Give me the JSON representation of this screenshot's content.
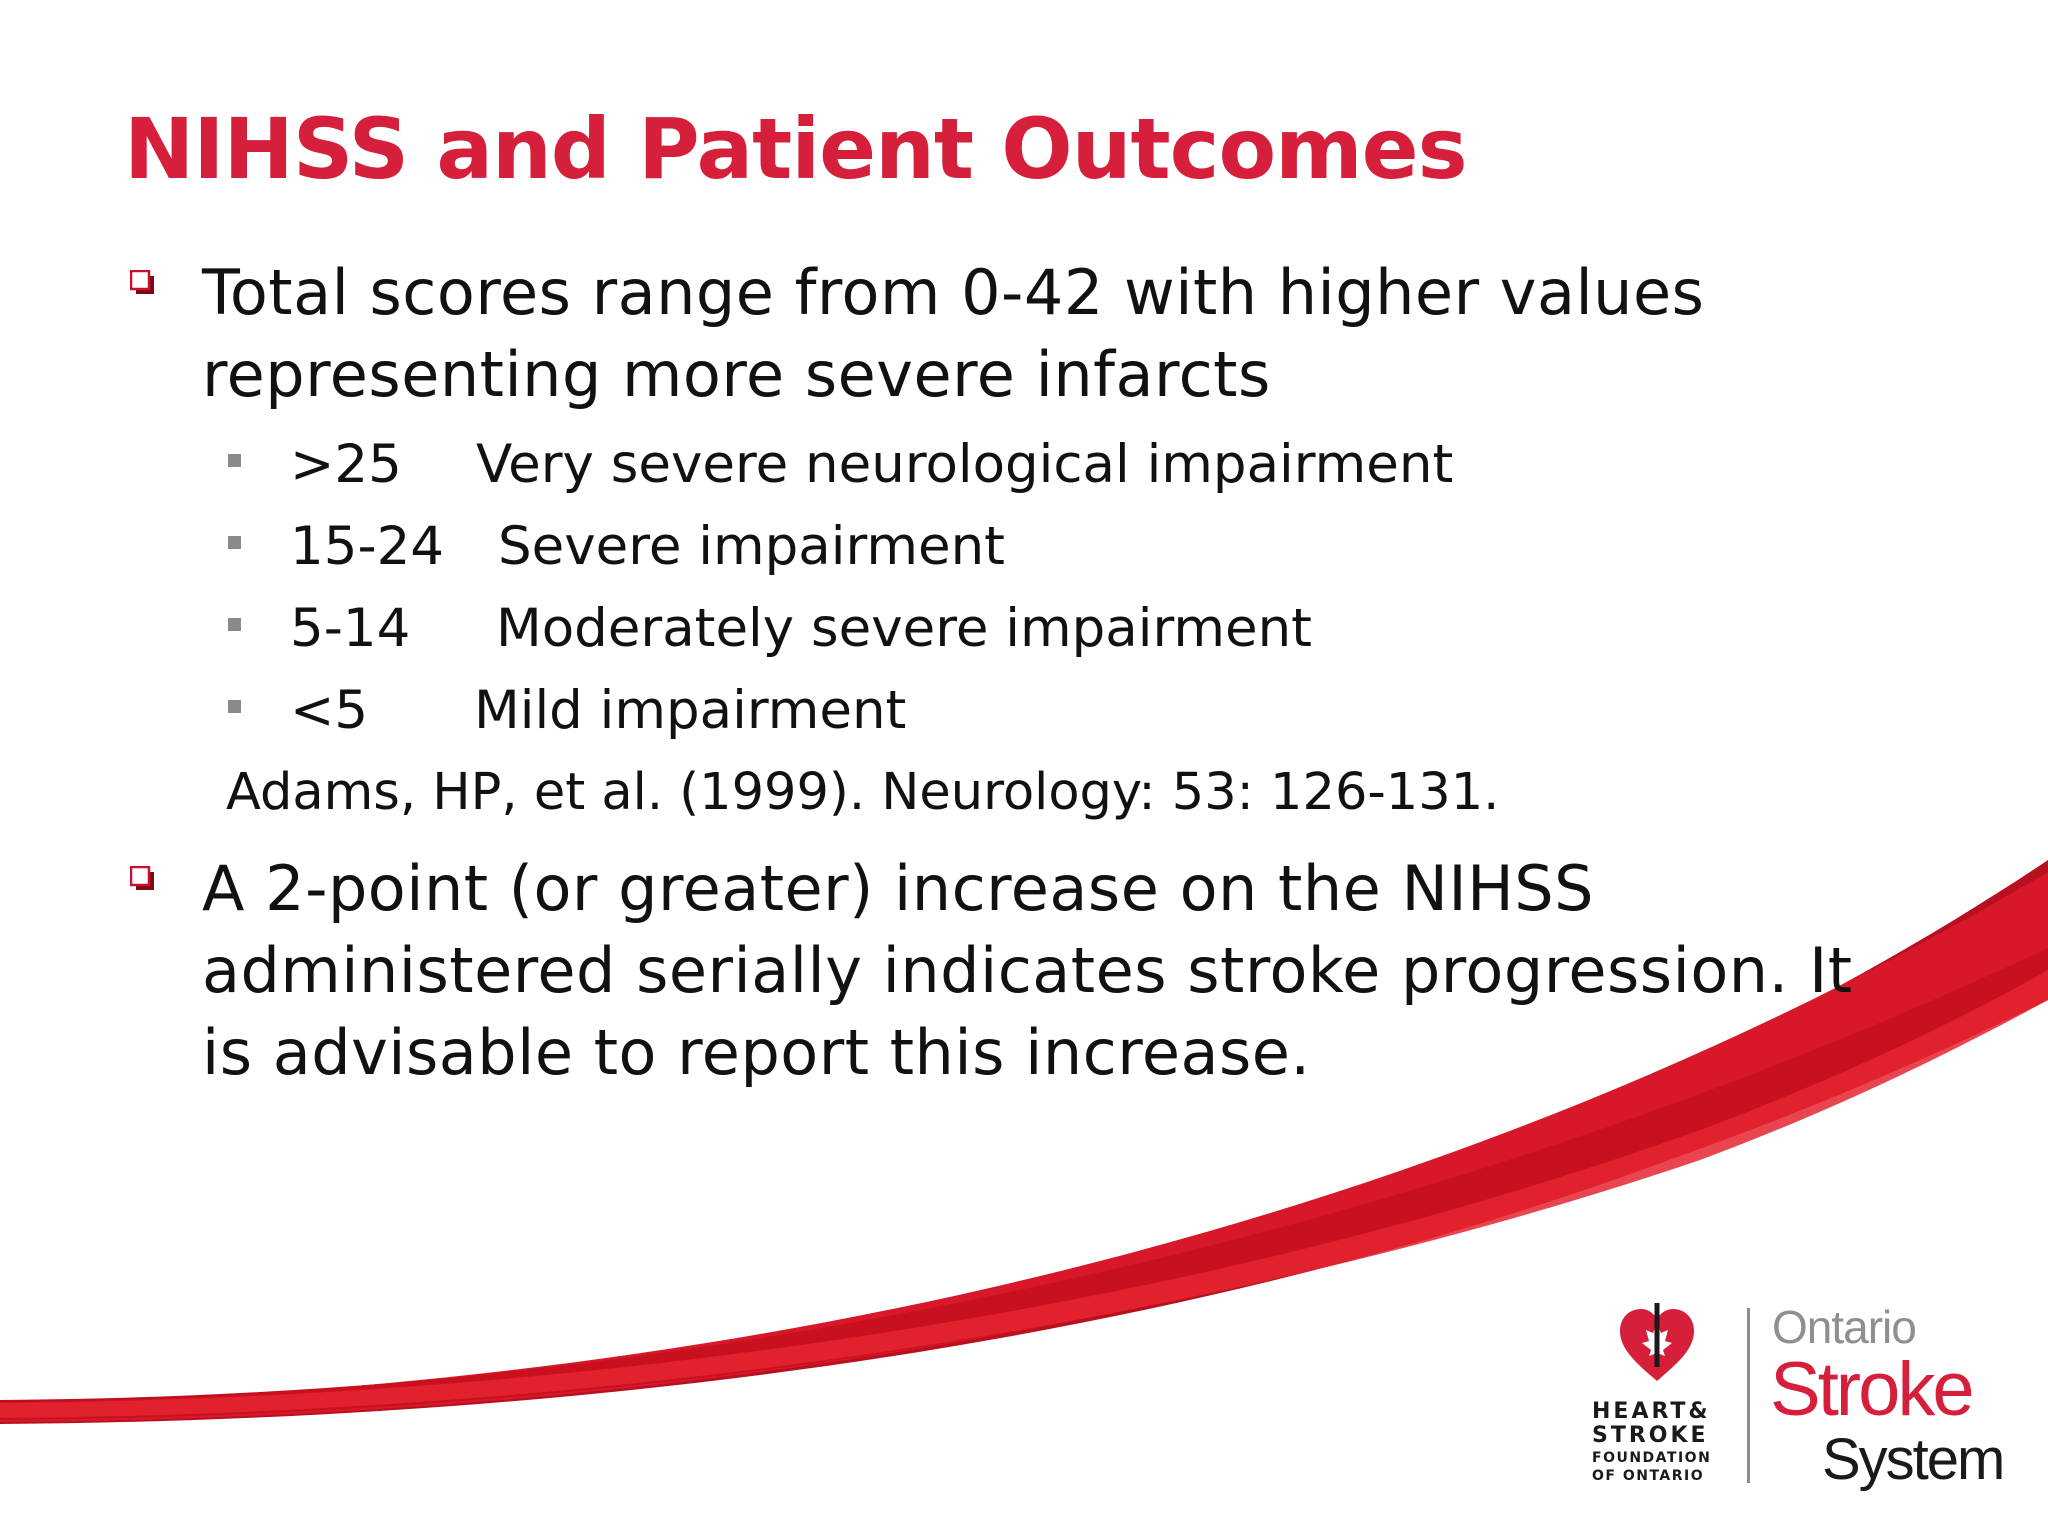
{
  "slide": {
    "title": "NIHSS and Patient Outcomes",
    "bullets": [
      {
        "lines": [
          "Total scores range from 0-42 with higher values",
          "representing more severe infarcts"
        ]
      },
      {
        "lines": [
          "A 2-point (or greater) increase on the NIHSS",
          "administered serially indicates stroke progression. It",
          "is advisable to report this increase."
        ]
      }
    ],
    "subitems": [
      {
        "range": ">25",
        "description": "Very severe neurological impairment"
      },
      {
        "range": "15-24",
        "description": "Severe impairment"
      },
      {
        "range": "5-14",
        "description": "Moderately severe impairment"
      },
      {
        "range": "<5",
        "description": "Mild impairment"
      }
    ],
    "reference": "Adams, HP, et al.  (1999).  Neurology: 53:  126-131."
  },
  "logos": {
    "hsf": {
      "lines": [
        "HEART&",
        "STROKE",
        "FOUNDATION",
        "OF ONTARIO"
      ]
    },
    "ontario_stroke_system": {
      "line1": "Ontario",
      "line2": "Stroke",
      "line3": "System"
    }
  },
  "colors": {
    "title_red": "#d51f3b",
    "swoosh_red": "#e3242b",
    "swoosh_dark_red": "#b8101f",
    "bullet_red": "#c8102e",
    "sub_bullet_gray": "#8a8a8a",
    "logo_gray": "#8f8f8f",
    "text": "#111111"
  },
  "icons": {
    "main_bullet": "hollow-square-bullet-icon",
    "sub_bullet": "filled-square-bullet-icon",
    "hsf_logo": "heart-torch-maple-icon",
    "background": "red-swoosh-graphic"
  }
}
